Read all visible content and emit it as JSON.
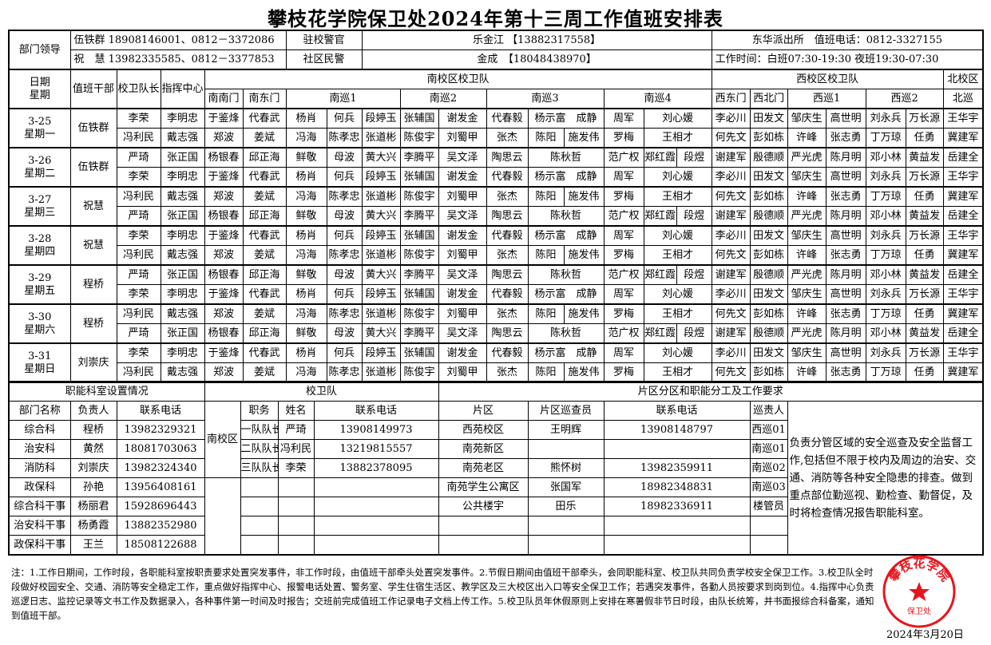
{
  "title": "攀枝花学院保卫处2024年第十三周工作值班安排表",
  "leaders": {
    "label": "部门领导",
    "line1": "伍铁群 18908146001、0812－3372086",
    "line2": "祝　慧 13982335585、0812－3377853",
    "officer_label": "驻校警官",
    "officer": "乐金江 【13882317558】",
    "community_label": "社区民警",
    "community": "金成　【18048438970】",
    "station": "东华派出所　值班电话：0812-3327155",
    "hours": "工作时间：白班07:30-19:30 夜班19:30-07:30"
  },
  "headers": {
    "date": "日期\n星期",
    "duty": "值班干部",
    "captain": "校卫队长",
    "command": "指挥中心",
    "south": "南校区校卫队",
    "west": "西校区校卫队",
    "north": "北校区",
    "sub": [
      "南南门",
      "南东门",
      "南巡1",
      "南巡2",
      "南巡3",
      "南巡4",
      "西东门",
      "西北门",
      "西巡1",
      "西巡2",
      "北巡"
    ]
  },
  "days": [
    {
      "date": "3-25",
      "weekday": "星期一",
      "duty": "伍铁群",
      "rows": [
        [
          "李荣",
          "李明忠",
          "于鉴烽",
          "代春武",
          "杨肖",
          "何兵",
          "段婷玉",
          "张辅国",
          "谢发金",
          "代春毅",
          "杨示富　成静",
          null,
          "周军",
          "刘心媛",
          null,
          "李必川",
          "田发文",
          "邹庆生",
          "高世明",
          "刘永兵",
          "万长源",
          "王华宇"
        ],
        [
          "冯利民",
          "戴志强",
          "郑波",
          "姜斌",
          "冯海",
          "陈孝忠",
          "张道彬",
          "陈俊宇",
          "刘蜀甲",
          "张杰",
          "陈阳",
          "施发伟",
          "罗梅",
          "王相才",
          null,
          "何先文",
          "彭如栋",
          "许峰",
          "张志勇",
          "丁万琼",
          "任勇",
          "冀建军"
        ]
      ]
    },
    {
      "date": "3-26",
      "weekday": "星期二",
      "duty": "伍铁群",
      "rows": [
        [
          "严琦",
          "张正国",
          "杨银春",
          "邱正海",
          "鲜敬",
          "母波",
          "黄大兴",
          "李腾平",
          "吴文泽",
          "陶思云",
          "陈秋哲",
          null,
          "范广权",
          "郑红霞",
          "段煜",
          "谢建军",
          "殷德顺",
          "严光虎",
          "陈月明",
          "邓小林",
          "黄益发",
          "岳建全"
        ],
        [
          "李荣",
          "李明忠",
          "于鉴烽",
          "代春武",
          "杨肖",
          "何兵",
          "段婷玉",
          "张辅国",
          "谢发金",
          "代春毅",
          "杨示富　成静",
          null,
          "周军",
          "刘心媛",
          null,
          "李必川",
          "田发文",
          "邹庆生",
          "高世明",
          "刘永兵",
          "万长源",
          "王华宇"
        ]
      ]
    },
    {
      "date": "3-27",
      "weekday": "星期三",
      "duty": "祝慧",
      "rows": [
        [
          "冯利民",
          "戴志强",
          "郑波",
          "姜斌",
          "冯海",
          "陈孝忠",
          "张道彬",
          "陈俊宇",
          "刘蜀甲",
          "张杰",
          "陈阳",
          "施发伟",
          "罗梅",
          "王相才",
          null,
          "何先文",
          "彭如栋",
          "许峰",
          "张志勇",
          "丁万琼",
          "任勇",
          "冀建军"
        ],
        [
          "严琦",
          "张正国",
          "杨银春",
          "邱正海",
          "鲜敬",
          "母波",
          "黄大兴",
          "李腾平",
          "吴文泽",
          "陶思云",
          "陈秋哲",
          null,
          "范广权",
          "郑红霞",
          "段煜",
          "谢建军",
          "殷德顺",
          "严光虎",
          "陈月明",
          "邓小林",
          "黄益发",
          "岳建全"
        ]
      ]
    },
    {
      "date": "3-28",
      "weekday": "星期四",
      "duty": "祝慧",
      "rows": [
        [
          "李荣",
          "李明忠",
          "于鉴烽",
          "代春武",
          "杨肖",
          "何兵",
          "段婷玉",
          "张辅国",
          "谢发金",
          "代春毅",
          "杨示富　成静",
          null,
          "周军",
          "刘心媛",
          null,
          "李必川",
          "田发文",
          "邹庆生",
          "高世明",
          "刘永兵",
          "万长源",
          "王华宇"
        ],
        [
          "冯利民",
          "戴志强",
          "郑波",
          "姜斌",
          "冯海",
          "陈孝忠",
          "张道彬",
          "陈俊宇",
          "刘蜀甲",
          "张杰",
          "陈阳",
          "施发伟",
          "罗梅",
          "王相才",
          null,
          "何先文",
          "彭如栋",
          "许峰",
          "张志勇",
          "丁万琼",
          "任勇",
          "冀建军"
        ]
      ]
    },
    {
      "date": "3-29",
      "weekday": "星期五",
      "duty": "程桥",
      "rows": [
        [
          "严琦",
          "张正国",
          "杨银春",
          "邱正海",
          "鲜敬",
          "母波",
          "黄大兴",
          "李腾平",
          "吴文泽",
          "陶思云",
          "陈秋哲",
          null,
          "范广权",
          "郑红霞",
          "段煜",
          "谢建军",
          "殷德顺",
          "严光虎",
          "陈月明",
          "邓小林",
          "黄益发",
          "岳建全"
        ],
        [
          "李荣",
          "李明忠",
          "于鉴烽",
          "代春武",
          "杨肖",
          "何兵",
          "段婷玉",
          "张辅国",
          "谢发金",
          "代春毅",
          "杨示富　成静",
          null,
          "周军",
          "刘心媛",
          null,
          "李必川",
          "田发文",
          "邹庆生",
          "高世明",
          "刘永兵",
          "万长源",
          "王华宇"
        ]
      ]
    },
    {
      "date": "3-30",
      "weekday": "星期六",
      "duty": "程桥",
      "rows": [
        [
          "冯利民",
          "戴志强",
          "郑波",
          "姜斌",
          "冯海",
          "陈孝忠",
          "张道彬",
          "陈俊宇",
          "刘蜀甲",
          "张杰",
          "陈阳",
          "施发伟",
          "罗梅",
          "王相才",
          null,
          "何先文",
          "彭如栋",
          "许峰",
          "张志勇",
          "丁万琼",
          "任勇",
          "冀建军"
        ],
        [
          "严琦",
          "张正国",
          "杨银春",
          "邱正海",
          "鲜敬",
          "母波",
          "黄大兴",
          "李腾平",
          "吴文泽",
          "陶思云",
          "陈秋哲",
          null,
          "范广权",
          "郑红霞",
          "段煜",
          "谢建军",
          "殷德顺",
          "严光虎",
          "陈月明",
          "邓小林",
          "黄益发",
          "岳建全"
        ]
      ]
    },
    {
      "date": "3-31",
      "weekday": "星期日",
      "duty": "刘崇庆",
      "rows": [
        [
          "李荣",
          "李明忠",
          "于鉴烽",
          "代春武",
          "杨肖",
          "何兵",
          "段婷玉",
          "张辅国",
          "谢发金",
          "代春毅",
          "杨示富　成静",
          null,
          "周军",
          "刘心媛",
          null,
          "李必川",
          "田发文",
          "邹庆生",
          "高世明",
          "刘永兵",
          "万长源",
          "王华宇"
        ],
        [
          "冯利民",
          "戴志强",
          "郑波",
          "姜斌",
          "冯海",
          "陈孝忠",
          "张道彬",
          "陈俊宇",
          "刘蜀甲",
          "张杰",
          "陈阳",
          "施发伟",
          "罗梅",
          "王相才",
          null,
          "何先文",
          "彭如栋",
          "许峰",
          "张志勇",
          "丁万琼",
          "任勇",
          "冀建军"
        ]
      ]
    }
  ],
  "departments": {
    "title": "职能科室设置情况",
    "columns": [
      "部门名称",
      "负责人",
      "联系电话"
    ],
    "rows": [
      [
        "综合科",
        "程桥",
        "13982329321"
      ],
      [
        "治安科",
        "黄然",
        "18081703063"
      ],
      [
        "消防科",
        "刘崇庆",
        "13982324340"
      ],
      [
        "政保科",
        "孙艳",
        "13956408161"
      ],
      [
        "综合科干事",
        "杨丽君",
        "15928696443"
      ],
      [
        "治安科干事",
        "杨勇霞",
        "13882352980"
      ],
      [
        "政保科干事",
        "王兰",
        "18508122688"
      ]
    ]
  },
  "guard_team": {
    "title": "校卫队",
    "campus": "南校区",
    "columns": [
      "职务",
      "姓名",
      "联系电话"
    ],
    "rows": [
      [
        "一队队长",
        "严琦",
        "13908149973"
      ],
      [
        "二队队长",
        "冯利民",
        "13219815557"
      ],
      [
        "三队队长",
        "李荣",
        "13882378095"
      ]
    ]
  },
  "zones": {
    "title": "片区分区和职能分工及工作要求",
    "columns": [
      "片区",
      "片区巡查员",
      "联系电话",
      "巡责人"
    ],
    "rows": [
      [
        "西苑校区",
        "王明辉",
        "13908148797",
        "西巡01"
      ],
      [
        "南苑新区",
        "",
        "",
        "南巡01"
      ],
      [
        "南苑老区",
        "熊怀树",
        "13982359911",
        "南巡02"
      ],
      [
        "南苑学生公寓区",
        "张国军",
        "18982348831",
        "南巡03"
      ],
      [
        "公共楼宇",
        "田乐",
        "18982336911",
        "楼管员"
      ]
    ],
    "requirement": "负责分管区域的安全巡查及安全监督工作,包括但不限于校内及周边的治安、交通、消防等各种安全隐患的排查。做到重点部位勤巡视、勤检查、勤督促，及时将检查情况报告职能科室。"
  },
  "notes": "注：1.工作日期间，工作时段，各职能科室按职责要求处置突发事件，非工作时段，由值班干部牵头处置突发事件。2.节假日期间由值班干部牵头，会同职能科室、校卫队共同负责学校安全保卫工作。3.校卫队全时段做好校园安全、交通、消防等安全稳定工作，重点做好指挥中心、报警电话处置、警务室、学生住宿生活区、教学区及三大校区出入口等安全保卫工作；若遇突发事件，各勤人员按要求到岗到位。4.指挥中心负责巡逻日志、监控记录等文书工作及数据录入，各种事件第一时间及时报告；交班前完成值班工作记录电子文档上传工作。5.校卫队员年休假原则上安排在寒暑假非节日时段，由队长统筹，并书面报综合科备案，通知到值班干部。",
  "stamp": {
    "text": "攀枝花学院",
    "center": "保卫处",
    "color": "#e8141c"
  },
  "date": "2024年3月20日"
}
